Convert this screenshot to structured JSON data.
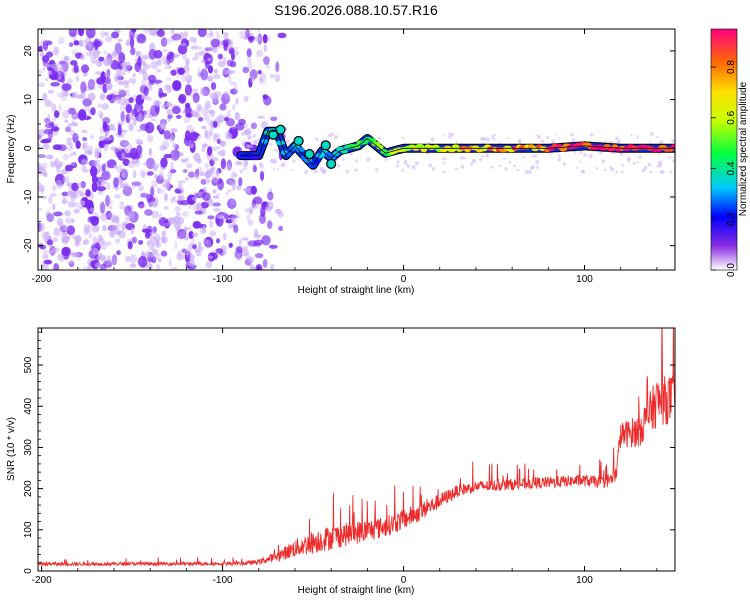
{
  "title": "S196.2026.088.10.57.R16",
  "colors": {
    "frame": "#000000",
    "snr_line": "#ee2b2b",
    "noise": "#7a2cf0",
    "noise_light": "#c9aaf7"
  },
  "chart_data": [
    {
      "type": "heatmap",
      "name": "spectrogram",
      "xlabel": "Height of straight line (km)",
      "ylabel": "Frequency (Hz)",
      "xlim": [
        -202,
        150
      ],
      "ylim": [
        -25,
        24.5
      ],
      "xticks": [
        -200,
        -100,
        0,
        100
      ],
      "xtick_labels": [
        "-200",
        "-100",
        "0",
        "100"
      ],
      "yticks": [
        -20,
        -10,
        0,
        10,
        20
      ],
      "ytick_labels": [
        "-20",
        "-10",
        "0",
        "10",
        "20"
      ],
      "colorbar": {
        "label": "Normalized spectral amplitude",
        "range": [
          0,
          0.95
        ],
        "ticks": [
          0.0,
          0.2,
          0.4,
          0.6,
          0.8
        ],
        "tick_labels": [
          "0.0",
          "0.2",
          "0.4",
          "0.6",
          "0.8"
        ]
      },
      "noise_region_x": [
        -202,
        -72
      ],
      "signal_track": {
        "x": [
          -90,
          -80,
          -75,
          -70,
          -65,
          -60,
          -55,
          -50,
          -45,
          -40,
          -35,
          -30,
          -25,
          -20,
          -15,
          -10,
          -5,
          0,
          20,
          40,
          60,
          80,
          100,
          120,
          150
        ],
        "freq": [
          -1.5,
          -1.5,
          3.5,
          3.5,
          -1.5,
          0.5,
          -1.5,
          -3.5,
          -0.5,
          -2,
          -0.5,
          0,
          0.5,
          2,
          0.5,
          -1,
          -0.5,
          0,
          0,
          0,
          0,
          0,
          0.5,
          0,
          0
        ],
        "amplitude": [
          0.2,
          0.2,
          0.4,
          0.35,
          0.3,
          0.3,
          0.3,
          0.25,
          0.3,
          0.3,
          0.35,
          0.45,
          0.5,
          0.45,
          0.5,
          0.55,
          0.55,
          0.6,
          0.65,
          0.75,
          0.8,
          0.85,
          0.9,
          0.95,
          0.95
        ]
      }
    },
    {
      "type": "line",
      "name": "snr",
      "xlabel": "Height of straight line (km)",
      "ylabel": "SNR (10 * v/v)",
      "xlim": [
        -202,
        150
      ],
      "ylim": [
        0,
        590
      ],
      "xticks": [
        -200,
        -100,
        0,
        100
      ],
      "xtick_labels": [
        "-200",
        "-100",
        "0",
        "100"
      ],
      "yticks": [
        0,
        100,
        200,
        300,
        400,
        500
      ],
      "ytick_labels": [
        "0",
        "100",
        "200",
        "300",
        "400",
        "500"
      ],
      "trend": {
        "x": [
          -202,
          -90,
          -80,
          -70,
          -60,
          -50,
          -40,
          -30,
          -20,
          -10,
          0,
          10,
          20,
          30,
          40,
          60,
          80,
          100,
          110,
          117,
          120,
          130,
          140,
          150
        ],
        "y": [
          17,
          18,
          22,
          35,
          55,
          70,
          82,
          90,
          98,
          108,
          125,
          145,
          170,
          195,
          205,
          210,
          215,
          220,
          215,
          225,
          330,
          340,
          410,
          420
        ],
        "noise": [
          4,
          4,
          6,
          12,
          22,
          28,
          30,
          28,
          28,
          25,
          25,
          22,
          18,
          15,
          14,
          14,
          14,
          14,
          14,
          20,
          30,
          40,
          60,
          60
        ]
      }
    }
  ]
}
